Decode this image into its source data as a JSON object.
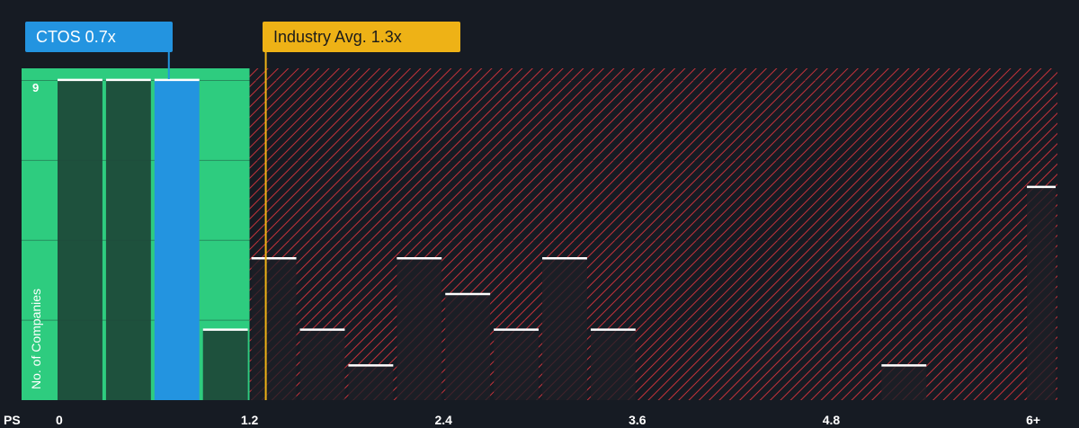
{
  "chart_data": {
    "type": "bar",
    "x_axis_label": "PS",
    "y_axis_label": "No. of Companies",
    "x_ticks": [
      "0",
      "1.2",
      "2.4",
      "3.6",
      "4.8",
      "6+"
    ],
    "y_ticks": [
      "9"
    ],
    "ylim": [
      0,
      9.3
    ],
    "xlim": [
      0,
      6.2
    ],
    "bins": [
      {
        "start": 0.0,
        "end": 0.3,
        "count": 9
      },
      {
        "start": 0.3,
        "end": 0.6,
        "count": 9
      },
      {
        "start": 0.6,
        "end": 0.9,
        "count": 9,
        "highlight": true
      },
      {
        "start": 0.9,
        "end": 1.2,
        "count": 2
      },
      {
        "start": 1.2,
        "end": 1.5,
        "count": 4
      },
      {
        "start": 1.5,
        "end": 1.8,
        "count": 2
      },
      {
        "start": 1.8,
        "end": 2.1,
        "count": 1
      },
      {
        "start": 2.1,
        "end": 2.4,
        "count": 4
      },
      {
        "start": 2.4,
        "end": 2.7,
        "count": 3
      },
      {
        "start": 2.7,
        "end": 3.0,
        "count": 2
      },
      {
        "start": 3.0,
        "end": 3.3,
        "count": 4
      },
      {
        "start": 3.3,
        "end": 3.6,
        "count": 2
      },
      {
        "start": 5.1,
        "end": 5.4,
        "count": 1
      },
      {
        "start": 6.0,
        "end": 6.2,
        "count": 6
      }
    ],
    "company": {
      "label": "CTOS 0.7x",
      "value": 0.7
    },
    "industry_avg": {
      "label": "Industry Avg. 1.3x",
      "value": 1.3
    },
    "fair_zone_end": 1.2,
    "grid": true
  },
  "colors": {
    "background": "#161b23",
    "fair_zone": "#2ecc7f",
    "fair_bar": "#1d4a3a",
    "company_bar": "#2394e0",
    "industry_line": "#eeb216",
    "overvalued_hatch": "#c4323a",
    "overvalued_bar": "#1e1f26",
    "bar_cap": "#ffffff",
    "text": "#ffffff"
  }
}
